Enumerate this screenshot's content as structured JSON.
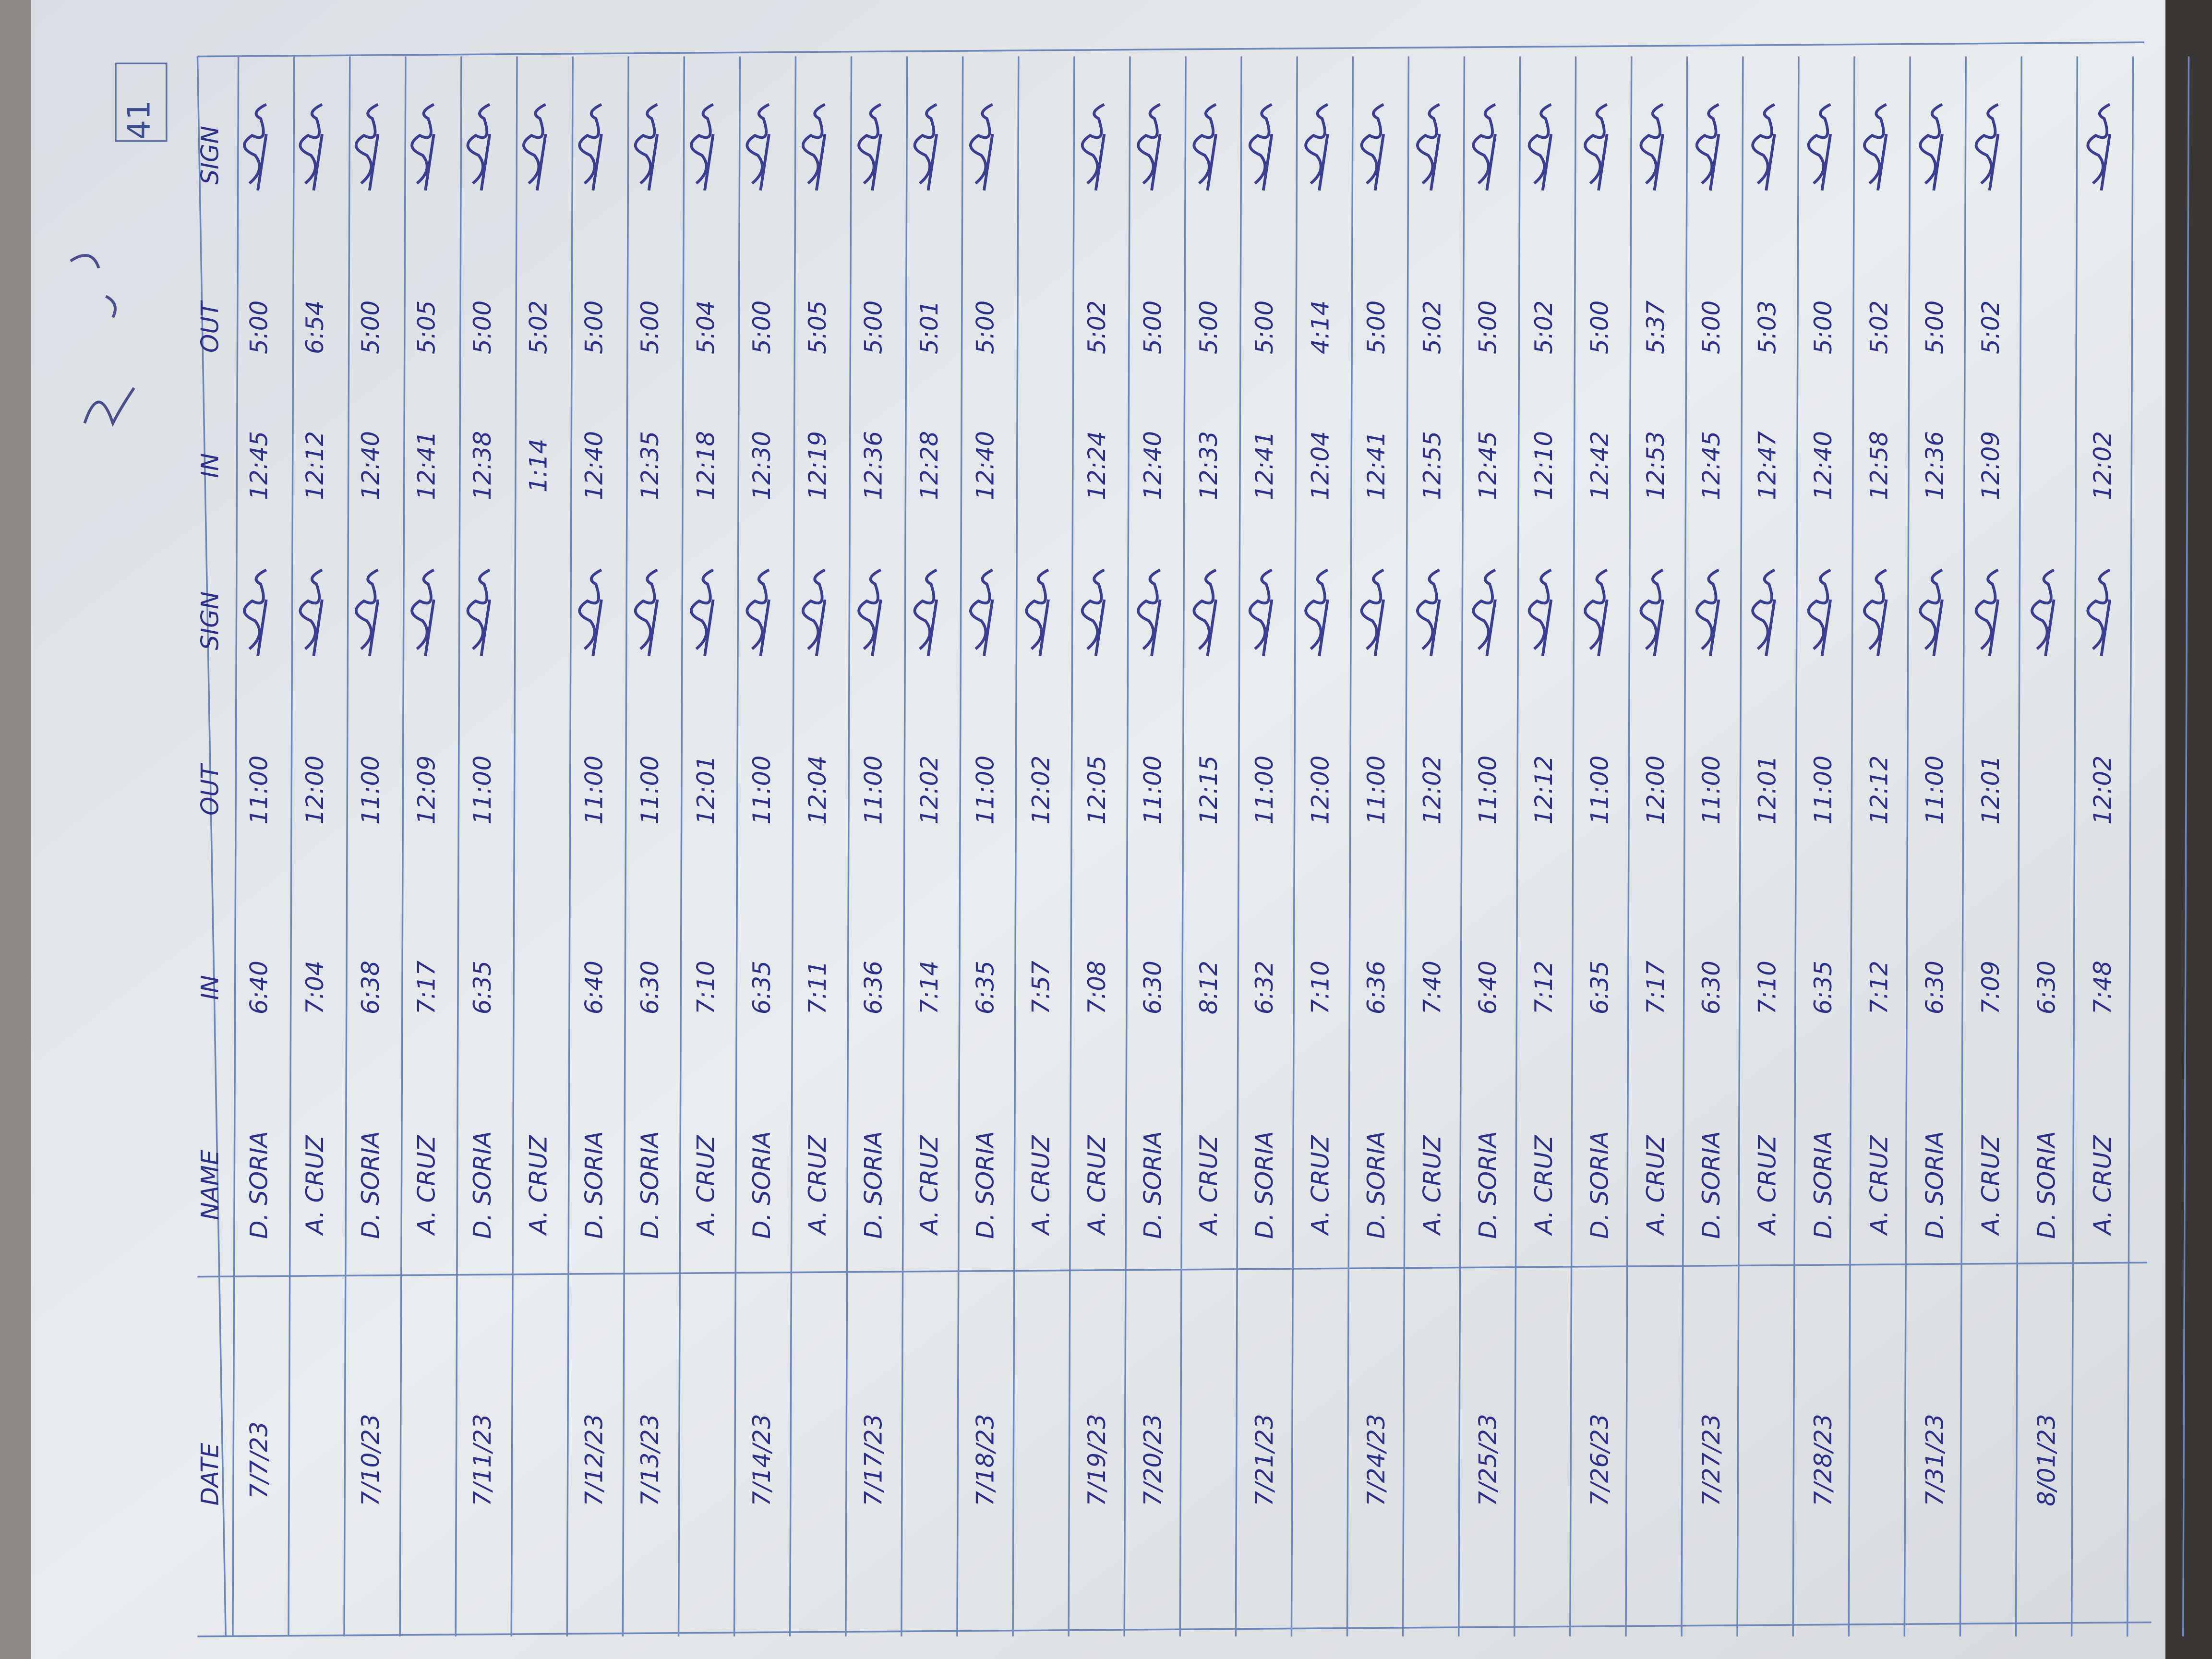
{
  "page_number": "41",
  "table": {
    "headers": [
      "DATE",
      "NAME",
      "IN",
      "OUT",
      "SIGN",
      "IN",
      "OUT",
      "SIGN"
    ],
    "rows": [
      [
        "7/7/23",
        "D. SORIA",
        "6:40",
        "11:00",
        "12:45",
        "5:00"
      ],
      [
        null,
        "A. CRUZ",
        "7:04",
        "12:00",
        "12:12",
        "6:54"
      ],
      [
        "7/10/23",
        "D. SORIA",
        "6:38",
        "11:00",
        "12:40",
        "5:00"
      ],
      [
        null,
        "A. CRUZ",
        "7:17",
        "12:09",
        "12:41",
        "5:05"
      ],
      [
        "7/11/23",
        "D. SORIA",
        "6:35",
        "11:00",
        "12:38",
        "5:00"
      ],
      [
        null,
        "A. CRUZ",
        null,
        null,
        "1:14",
        "5:02"
      ],
      [
        "7/12/23",
        "D. SORIA",
        "6:40",
        "11:00",
        "12:40",
        "5:00"
      ],
      [
        "7/13/23",
        "D. SORIA",
        "6:30",
        "11:00",
        "12:35",
        "5:00"
      ],
      [
        null,
        "A. CRUZ",
        "7:10",
        "12:01",
        "12:18",
        "5:04"
      ],
      [
        "7/14/23",
        "D. SORIA",
        "6:35",
        "11:00",
        "12:30",
        "5:00"
      ],
      [
        null,
        "A. CRUZ",
        "7:11",
        "12:04",
        "12:19",
        "5:05"
      ],
      [
        "7/17/23",
        "D. SORIA",
        "6:36",
        "11:00",
        "12:36",
        "5:00"
      ],
      [
        null,
        "A. CRUZ",
        "7:14",
        "12:02",
        "12:28",
        "5:01"
      ],
      [
        "7/18/23",
        "D. SORIA",
        "6:35",
        "11:00",
        "12:40",
        "5:00"
      ],
      [
        null,
        "A. CRUZ",
        "7:57",
        "12:02",
        null,
        null
      ],
      [
        "7/19/23",
        "A. CRUZ",
        "7:08",
        "12:05",
        "12:24",
        "5:02"
      ],
      [
        "7/20/23",
        "D. SORIA",
        "6:30",
        "11:00",
        "12:40",
        "5:00"
      ],
      [
        null,
        "A. CRUZ",
        "8:12",
        "12:15",
        "12:33",
        "5:00"
      ],
      [
        "7/21/23",
        "D. SORIA",
        "6:32",
        "11:00",
        "12:41",
        "5:00"
      ],
      [
        null,
        "A. CRUZ",
        "7:10",
        "12:00",
        "12:04",
        "4:14"
      ],
      [
        "7/24/23",
        "D. SORIA",
        "6:36",
        "11:00",
        "12:41",
        "5:00"
      ],
      [
        null,
        "A. CRUZ",
        "7:40",
        "12:02",
        "12:55",
        "5:02"
      ],
      [
        "7/25/23",
        "D. SORIA",
        "6:40",
        "11:00",
        "12:45",
        "5:00"
      ],
      [
        null,
        "A. CRUZ",
        "7:12",
        "12:12",
        "12:10",
        "5:02"
      ],
      [
        "7/26/23",
        "D. SORIA",
        "6:35",
        "11:00",
        "12:42",
        "5:00"
      ],
      [
        null,
        "A. CRUZ",
        "7:17",
        "12:00",
        "12:53",
        "5:37"
      ],
      [
        "7/27/23",
        "D. SORIA",
        "6:30",
        "11:00",
        "12:45",
        "5:00"
      ],
      [
        null,
        "A. CRUZ",
        "7:10",
        "12:01",
        "12:47",
        "5:03"
      ],
      [
        "7/28/23",
        "D. SORIA",
        "6:35",
        "11:00",
        "12:40",
        "5:00"
      ],
      [
        null,
        "A. CRUZ",
        "7:12",
        "12:12",
        "12:58",
        "5:02"
      ],
      [
        "7/31/23",
        "D. SORIA",
        "6:30",
        "11:00",
        "12:36",
        "5:00"
      ],
      [
        null,
        "A. CRUZ",
        "7:09",
        "12:01",
        "12:09",
        "5:02"
      ],
      [
        "8/01/23",
        "D. SORIA",
        "6:30",
        null,
        null,
        null
      ],
      [
        null,
        "A. CRUZ",
        "7:48",
        "12:02",
        "12:02",
        null
      ]
    ]
  }
}
